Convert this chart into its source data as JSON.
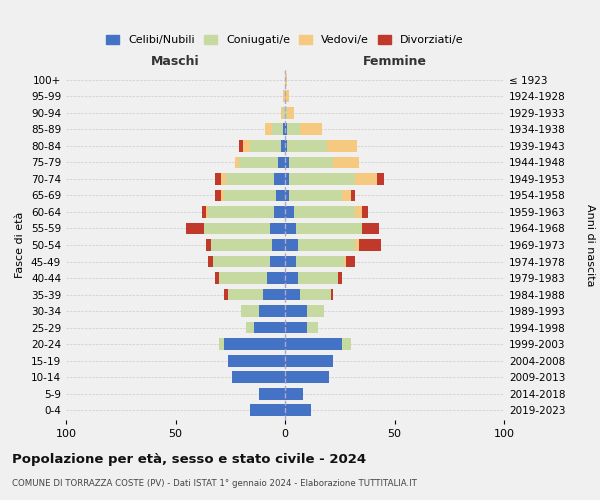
{
  "age_groups": [
    "0-4",
    "5-9",
    "10-14",
    "15-19",
    "20-24",
    "25-29",
    "30-34",
    "35-39",
    "40-44",
    "45-49",
    "50-54",
    "55-59",
    "60-64",
    "65-69",
    "70-74",
    "75-79",
    "80-84",
    "85-89",
    "90-94",
    "95-99",
    "100+"
  ],
  "birth_years": [
    "2019-2023",
    "2014-2018",
    "2009-2013",
    "2004-2008",
    "1999-2003",
    "1994-1998",
    "1989-1993",
    "1984-1988",
    "1979-1983",
    "1974-1978",
    "1969-1973",
    "1964-1968",
    "1959-1963",
    "1954-1958",
    "1949-1953",
    "1944-1948",
    "1939-1943",
    "1934-1938",
    "1929-1933",
    "1924-1928",
    "≤ 1923"
  ],
  "colors": {
    "celibi": "#4472C4",
    "coniugati": "#c5d9a0",
    "vedovi": "#f5c97f",
    "divorziati": "#c0392b"
  },
  "maschi": {
    "celibi": [
      16,
      12,
      24,
      26,
      28,
      14,
      12,
      10,
      8,
      7,
      6,
      7,
      5,
      4,
      5,
      3,
      2,
      1,
      0,
      0,
      0
    ],
    "coniugati": [
      0,
      0,
      0,
      0,
      2,
      4,
      8,
      16,
      22,
      26,
      28,
      30,
      30,
      24,
      22,
      18,
      14,
      5,
      1,
      0,
      0
    ],
    "vedovi": [
      0,
      0,
      0,
      0,
      0,
      0,
      0,
      0,
      0,
      0,
      0,
      0,
      1,
      1,
      2,
      2,
      3,
      3,
      1,
      1,
      0
    ],
    "divorziati": [
      0,
      0,
      0,
      0,
      0,
      0,
      0,
      2,
      2,
      2,
      2,
      8,
      2,
      3,
      3,
      0,
      2,
      0,
      0,
      0,
      0
    ]
  },
  "femmine": {
    "celibi": [
      12,
      8,
      20,
      22,
      26,
      10,
      10,
      7,
      6,
      5,
      6,
      5,
      4,
      2,
      2,
      2,
      1,
      1,
      0,
      0,
      0
    ],
    "coniugati": [
      0,
      0,
      0,
      0,
      4,
      5,
      8,
      14,
      18,
      22,
      26,
      30,
      28,
      24,
      30,
      20,
      18,
      6,
      1,
      0,
      0
    ],
    "vedovi": [
      0,
      0,
      0,
      0,
      0,
      0,
      0,
      0,
      0,
      1,
      2,
      0,
      3,
      4,
      10,
      12,
      14,
      10,
      3,
      2,
      1
    ],
    "divorziati": [
      0,
      0,
      0,
      0,
      0,
      0,
      0,
      1,
      2,
      4,
      10,
      8,
      3,
      2,
      3,
      0,
      0,
      0,
      0,
      0,
      0
    ]
  },
  "xlim": 100,
  "title": "Popolazione per età, sesso e stato civile - 2024",
  "subtitle": "COMUNE DI TORRAZZA COSTE (PV) - Dati ISTAT 1° gennaio 2024 - Elaborazione TUTTITALIA.IT",
  "ylabel_left": "Fasce di età",
  "ylabel_right": "Anni di nascita",
  "xlabel_left": "Maschi",
  "xlabel_right": "Femmine",
  "background_color": "#f0f0f0"
}
